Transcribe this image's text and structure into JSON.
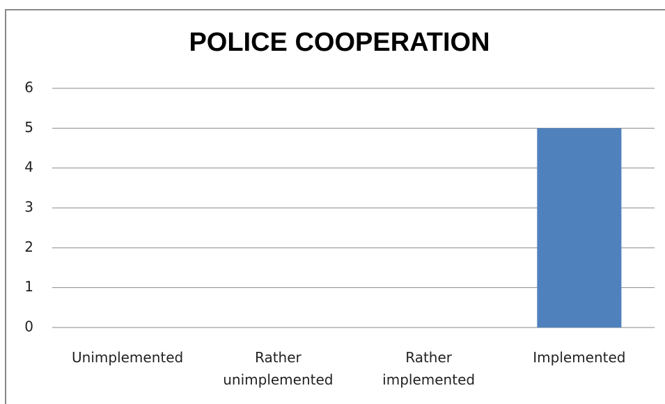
{
  "chart_data": {
    "type": "bar",
    "title": "POLICE COOPERATION",
    "categories": [
      "Unimplemented",
      "Rather unimplemented",
      "Rather implemented",
      "Implemented"
    ],
    "values": [
      0,
      0,
      0,
      5
    ],
    "color": "#4f81bd",
    "ylim": [
      0,
      6
    ],
    "yticks": [
      0,
      1,
      2,
      3,
      4,
      5,
      6
    ],
    "grid": true
  }
}
